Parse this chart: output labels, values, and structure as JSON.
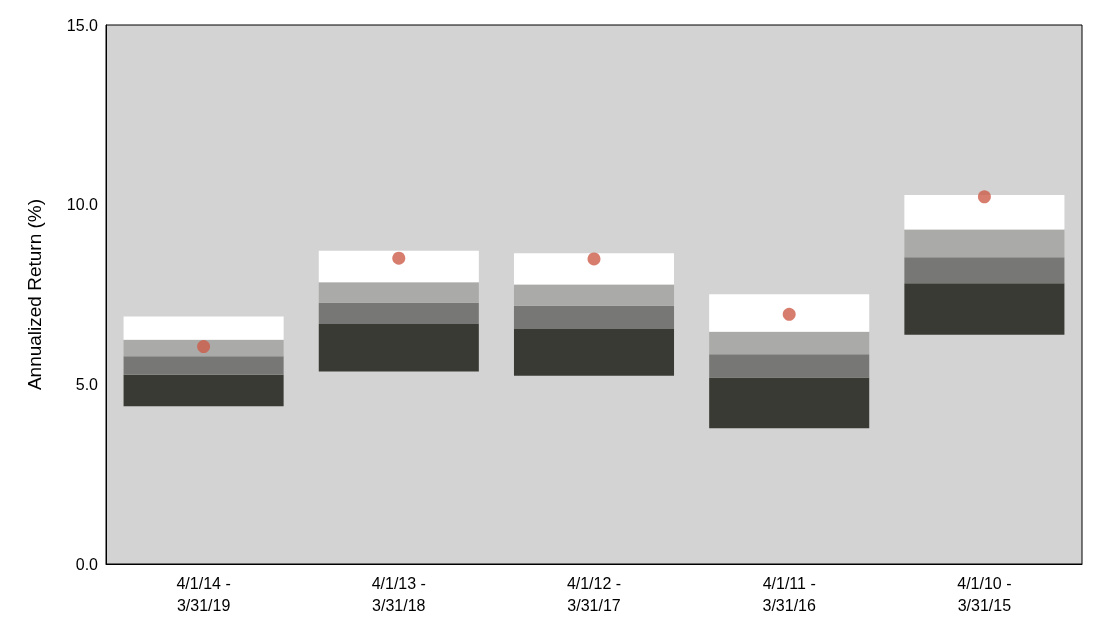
{
  "chart_data": {
    "type": "bar",
    "ylabel": "Annualized Return (%)",
    "categories": [
      "4/1/14 -\n3/31/19",
      "4/1/13 -\n3/31/18",
      "4/1/12 -\n3/31/17",
      "4/1/11 -\n3/31/16",
      "4/1/10 -\n3/31/15"
    ],
    "series": [
      {
        "color": "#3a3a34",
        "base": [
          4.39,
          5.36,
          5.24,
          3.78,
          6.38
        ],
        "values": [
          0.88,
          1.32,
          1.3,
          1.41,
          1.43
        ]
      },
      {
        "color": "#777775",
        "base": [
          5.27,
          6.68,
          6.54,
          5.19,
          7.81
        ],
        "values": [
          0.51,
          0.59,
          0.65,
          0.65,
          0.73
        ]
      },
      {
        "color": "#aaaaa8",
        "base": [
          5.78,
          7.27,
          7.19,
          5.84,
          8.54
        ],
        "values": [
          0.46,
          0.57,
          0.59,
          0.62,
          0.77
        ]
      },
      {
        "color": "#ffffff",
        "base": [
          6.24,
          7.84,
          7.78,
          6.46,
          9.31
        ],
        "values": [
          0.65,
          0.88,
          0.87,
          1.05,
          0.96
        ]
      },
      {
        "type": "scatter",
        "color": "#cd5c4a",
        "x": [
          "4/1/14 -\n3/31/19",
          "4/1/13 -\n3/31/18",
          "4/1/12 -\n3/31/17",
          "4/1/11 -\n3/31/16",
          "4/1/10 -\n3/31/15"
        ],
        "values": [
          6.05,
          8.51,
          8.49,
          6.95,
          10.22
        ]
      }
    ],
    "ylim": [
      0,
      15
    ],
    "yticks": [
      {
        "value": 0,
        "label": "0.0"
      },
      {
        "value": 5,
        "label": "5.0"
      },
      {
        "value": 10,
        "label": "10.0"
      },
      {
        "value": 15,
        "label": "15.0"
      }
    ],
    "grid": false,
    "marker": "circle"
  }
}
